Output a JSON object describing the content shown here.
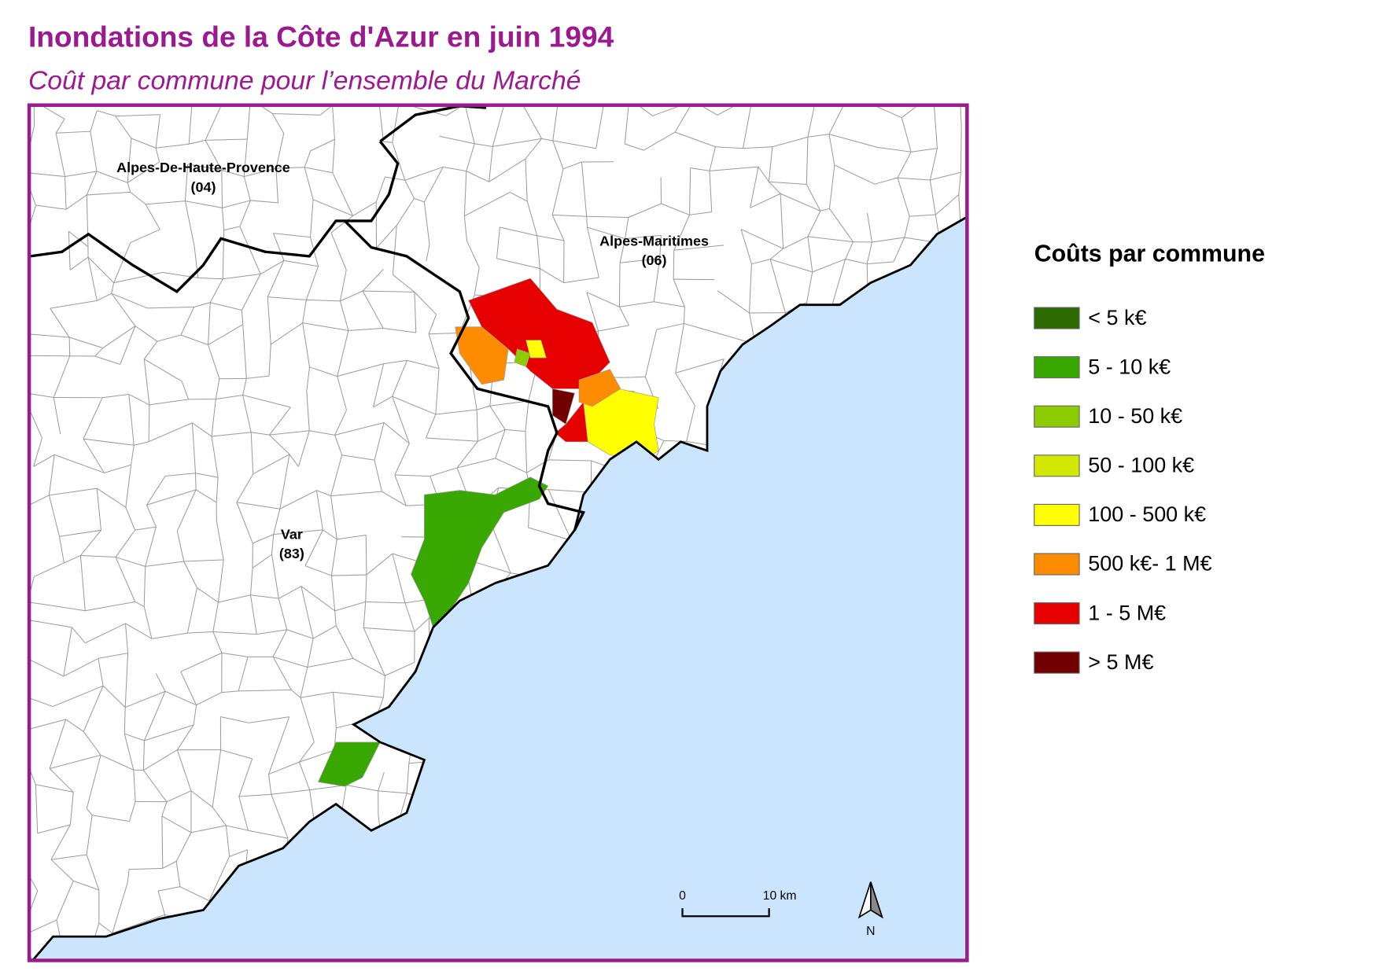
{
  "header": {
    "title": "Inondations de la Côte d'Azur en juin 1994",
    "subtitle": "Coût par commune pour l’ensemble du Marché"
  },
  "map": {
    "labels": [
      {
        "name": "Alpes-De-Haute-Provence",
        "code": "(04)"
      },
      {
        "name": "Alpes-Maritimes",
        "code": "(06)"
      },
      {
        "name": "Var",
        "code": "(83)"
      }
    ],
    "scale_bar": {
      "start": "0",
      "end": "10 km"
    },
    "north": "N"
  },
  "legend": {
    "title": "Coûts par commune",
    "items": [
      {
        "label": "< 5 k€",
        "color": "#2d6b00"
      },
      {
        "label": "5 - 10 k€",
        "color": "#38a800"
      },
      {
        "label": "10 - 50 k€",
        "color": "#8ccc00"
      },
      {
        "label": "50 - 100 k€",
        "color": "#d1e800"
      },
      {
        "label": "100 - 500 k€",
        "color": "#ffff00"
      },
      {
        "label": "500 k€- 1 M€",
        "color": "#ff8c00"
      },
      {
        "label": "1 - 5 M€",
        "color": "#e60000"
      },
      {
        "label": "> 5 M€",
        "color": "#730000"
      }
    ]
  }
}
